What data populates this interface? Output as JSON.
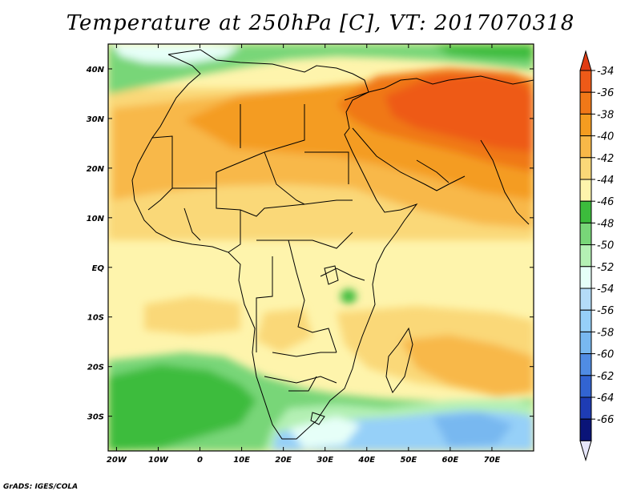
{
  "title": "Temperature at 250hPa [C], VT: 2017070318",
  "credit": "GrADS: IGES/COLA",
  "map": {
    "lon_range": [
      -22,
      80
    ],
    "lat_range": [
      -37,
      45
    ],
    "lon_ticks": [
      {
        "value": -20,
        "label": "20W"
      },
      {
        "value": -10,
        "label": "10W"
      },
      {
        "value": 0,
        "label": "0"
      },
      {
        "value": 10,
        "label": "10E"
      },
      {
        "value": 20,
        "label": "20E"
      },
      {
        "value": 30,
        "label": "30E"
      },
      {
        "value": 40,
        "label": "40E"
      },
      {
        "value": 50,
        "label": "50E"
      },
      {
        "value": 60,
        "label": "60E"
      },
      {
        "value": 70,
        "label": "70E"
      }
    ],
    "lat_ticks": [
      {
        "value": 40,
        "label": "40N"
      },
      {
        "value": 30,
        "label": "30N"
      },
      {
        "value": 20,
        "label": "20N"
      },
      {
        "value": 10,
        "label": "10N"
      },
      {
        "value": 0,
        "label": "EQ"
      },
      {
        "value": -10,
        "label": "10S"
      },
      {
        "value": -20,
        "label": "20S"
      },
      {
        "value": -30,
        "label": "30S"
      }
    ]
  },
  "colorbar": {
    "labels": [
      "-34",
      "-36",
      "-38",
      "-40",
      "-42",
      "-44",
      "-46",
      "-48",
      "-50",
      "-52",
      "-54",
      "-56",
      "-58",
      "-60",
      "-62",
      "-64",
      "-66"
    ],
    "colors": [
      "#ee5a18",
      "#f07818",
      "#f49c20",
      "#f8b848",
      "#fad878",
      "#fef4ac",
      "#3cbc3c",
      "#78d678",
      "#b4f0b4",
      "#e6fff8",
      "#b4dcf8",
      "#96d0f8",
      "#78b8f0",
      "#508ce4",
      "#3264d2",
      "#1e3cb4",
      "#0a1478"
    ],
    "top_arrow_color": "#e03c14",
    "bottom_arrow_color": "#e6e6fa"
  }
}
